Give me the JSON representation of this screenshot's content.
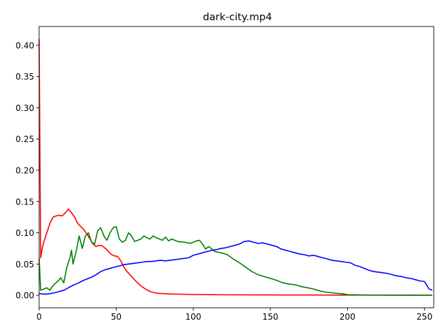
{
  "chart_data": {
    "type": "line",
    "title": "dark-city.mp4",
    "xlabel": "",
    "ylabel": "",
    "xlim": [
      0,
      256
    ],
    "ylim": [
      -0.02,
      0.43
    ],
    "xticks": [
      0,
      50,
      100,
      150,
      200,
      250
    ],
    "yticks": [
      0.0,
      0.05,
      0.1,
      0.15,
      0.2,
      0.25,
      0.3,
      0.35,
      0.4
    ],
    "grid": false,
    "legend": "none",
    "series": [
      {
        "color": "#ff0000",
        "x": [
          0,
          1,
          2,
          3,
          5,
          7,
          9,
          11,
          13,
          15,
          17,
          19,
          21,
          23,
          25,
          27,
          29,
          31,
          33,
          35,
          37,
          39,
          41,
          43,
          45,
          47,
          49,
          51,
          53,
          55,
          57,
          60,
          63,
          66,
          69,
          72,
          75,
          78,
          82,
          86,
          90,
          95,
          100,
          110,
          120,
          140,
          160,
          180,
          200,
          220,
          240,
          255
        ],
        "y": [
          0.41,
          0.06,
          0.075,
          0.085,
          0.1,
          0.115,
          0.125,
          0.127,
          0.128,
          0.127,
          0.132,
          0.138,
          0.132,
          0.125,
          0.115,
          0.11,
          0.105,
          0.098,
          0.09,
          0.082,
          0.078,
          0.08,
          0.079,
          0.075,
          0.07,
          0.065,
          0.063,
          0.062,
          0.055,
          0.045,
          0.038,
          0.03,
          0.022,
          0.015,
          0.01,
          0.006,
          0.004,
          0.003,
          0.0025,
          0.002,
          0.0018,
          0.0015,
          0.0012,
          0.001,
          0.0008,
          0.0006,
          0.0005,
          0.0004,
          0.0003,
          0.0003,
          0.0002,
          0.0002
        ]
      },
      {
        "color": "#008000",
        "x": [
          0,
          1,
          3,
          5,
          7,
          8,
          10,
          12,
          14,
          16,
          18,
          20,
          21,
          22,
          24,
          26,
          27,
          28,
          30,
          32,
          34,
          36,
          38,
          40,
          42,
          44,
          46,
          48,
          50,
          52,
          54,
          56,
          58,
          60,
          62,
          64,
          66,
          68,
          70,
          72,
          74,
          76,
          78,
          80,
          82,
          84,
          86,
          88,
          90,
          94,
          98,
          102,
          104,
          106,
          108,
          110,
          114,
          118,
          122,
          126,
          130,
          134,
          138,
          142,
          146,
          150,
          154,
          158,
          162,
          166,
          170,
          174,
          178,
          182,
          186,
          190,
          194,
          198,
          200,
          210,
          220,
          240,
          255
        ],
        "y": [
          0.06,
          0.008,
          0.01,
          0.012,
          0.008,
          0.012,
          0.018,
          0.022,
          0.028,
          0.02,
          0.045,
          0.06,
          0.072,
          0.05,
          0.07,
          0.095,
          0.085,
          0.075,
          0.095,
          0.1,
          0.085,
          0.082,
          0.103,
          0.108,
          0.095,
          0.088,
          0.1,
          0.108,
          0.11,
          0.09,
          0.085,
          0.088,
          0.1,
          0.095,
          0.086,
          0.088,
          0.09,
          0.095,
          0.092,
          0.09,
          0.095,
          0.092,
          0.09,
          0.088,
          0.093,
          0.087,
          0.09,
          0.088,
          0.086,
          0.085,
          0.083,
          0.087,
          0.088,
          0.082,
          0.074,
          0.078,
          0.07,
          0.068,
          0.065,
          0.058,
          0.052,
          0.045,
          0.038,
          0.033,
          0.03,
          0.027,
          0.024,
          0.02,
          0.018,
          0.017,
          0.014,
          0.012,
          0.01,
          0.007,
          0.005,
          0.004,
          0.003,
          0.002,
          0.001,
          0.0005,
          0.0003,
          0.0002,
          0.0001
        ]
      },
      {
        "color": "#0000ff",
        "x": [
          0,
          2,
          5,
          8,
          10,
          13,
          16,
          19,
          22,
          25,
          28,
          31,
          34,
          37,
          40,
          43,
          46,
          49,
          52,
          55,
          58,
          61,
          64,
          67,
          70,
          73,
          76,
          79,
          82,
          85,
          88,
          91,
          94,
          97,
          100,
          103,
          106,
          109,
          112,
          115,
          118,
          121,
          124,
          127,
          130,
          133,
          136,
          139,
          142,
          145,
          148,
          151,
          154,
          157,
          160,
          163,
          166,
          169,
          172,
          175,
          178,
          181,
          184,
          187,
          190,
          193,
          196,
          199,
          202,
          205,
          208,
          211,
          214,
          217,
          220,
          223,
          226,
          229,
          232,
          235,
          238,
          241,
          244,
          247,
          250,
          253,
          255
        ],
        "y": [
          0.003,
          0.002,
          0.002,
          0.003,
          0.004,
          0.006,
          0.008,
          0.012,
          0.016,
          0.019,
          0.023,
          0.026,
          0.029,
          0.033,
          0.038,
          0.041,
          0.043,
          0.045,
          0.047,
          0.049,
          0.05,
          0.051,
          0.052,
          0.053,
          0.054,
          0.054,
          0.055,
          0.056,
          0.055,
          0.056,
          0.057,
          0.058,
          0.059,
          0.06,
          0.064,
          0.066,
          0.068,
          0.07,
          0.072,
          0.073,
          0.075,
          0.076,
          0.078,
          0.08,
          0.082,
          0.086,
          0.087,
          0.085,
          0.083,
          0.084,
          0.082,
          0.08,
          0.078,
          0.074,
          0.072,
          0.07,
          0.068,
          0.066,
          0.065,
          0.063,
          0.064,
          0.062,
          0.06,
          0.058,
          0.056,
          0.055,
          0.054,
          0.053,
          0.052,
          0.048,
          0.046,
          0.043,
          0.04,
          0.038,
          0.037,
          0.036,
          0.035,
          0.033,
          0.031,
          0.03,
          0.028,
          0.027,
          0.025,
          0.023,
          0.022,
          0.01,
          0.008
        ]
      }
    ]
  }
}
